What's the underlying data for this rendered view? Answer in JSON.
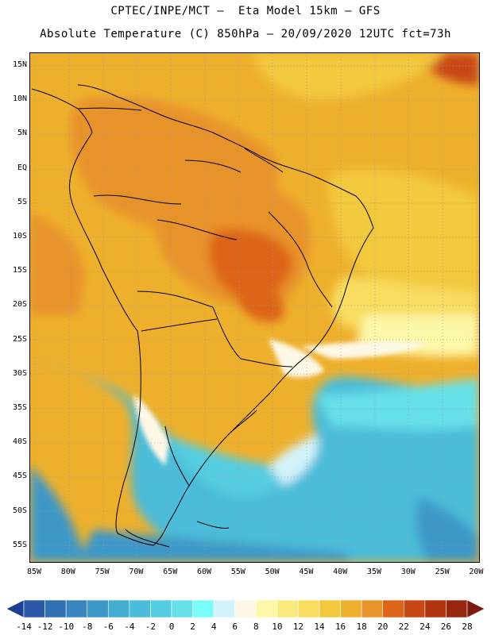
{
  "header": {
    "title_line1": "CPTEC/INPE/MCT –  Eta Model 15km – GFS",
    "title_line2": "Absolute Temperature (C) 850hPa – 20/09/2020 12UTC fct=73h"
  },
  "map": {
    "region": "South America",
    "lat_labels": [
      "15N",
      "10N",
      "5N",
      "EQ",
      "5S",
      "10S",
      "15S",
      "20S",
      "25S",
      "30S",
      "35S",
      "40S",
      "45S",
      "50S",
      "55S"
    ],
    "lon_labels": [
      "85W",
      "80W",
      "75W",
      "70W",
      "65W",
      "60W",
      "55W",
      "50W",
      "45W",
      "40W",
      "35W",
      "30W",
      "25W",
      "20W"
    ],
    "gridlines": "dotted"
  },
  "colorbar": {
    "labels": [
      "-14",
      "-12",
      "-10",
      "-8",
      "-6",
      "-4",
      "-2",
      "0",
      "2",
      "4",
      "6",
      "8",
      "10",
      "12",
      "14",
      "16",
      "18",
      "20",
      "22",
      "24",
      "26",
      "28"
    ],
    "colors": [
      "#1c3f94",
      "#2a58a6",
      "#2f6fb2",
      "#3884bd",
      "#3d98c7",
      "#42acd1",
      "#4bbcd9",
      "#55cde0",
      "#66e0e8",
      "#7afcfc",
      "#d3f3fb",
      "#fdf8e6",
      "#fdf7a8",
      "#f9ea7d",
      "#f8dd60",
      "#f2c83c",
      "#eeb02c",
      "#e8932a",
      "#dd6418",
      "#c84714",
      "#b13411",
      "#98250f",
      "#7a1a0e"
    ]
  }
}
